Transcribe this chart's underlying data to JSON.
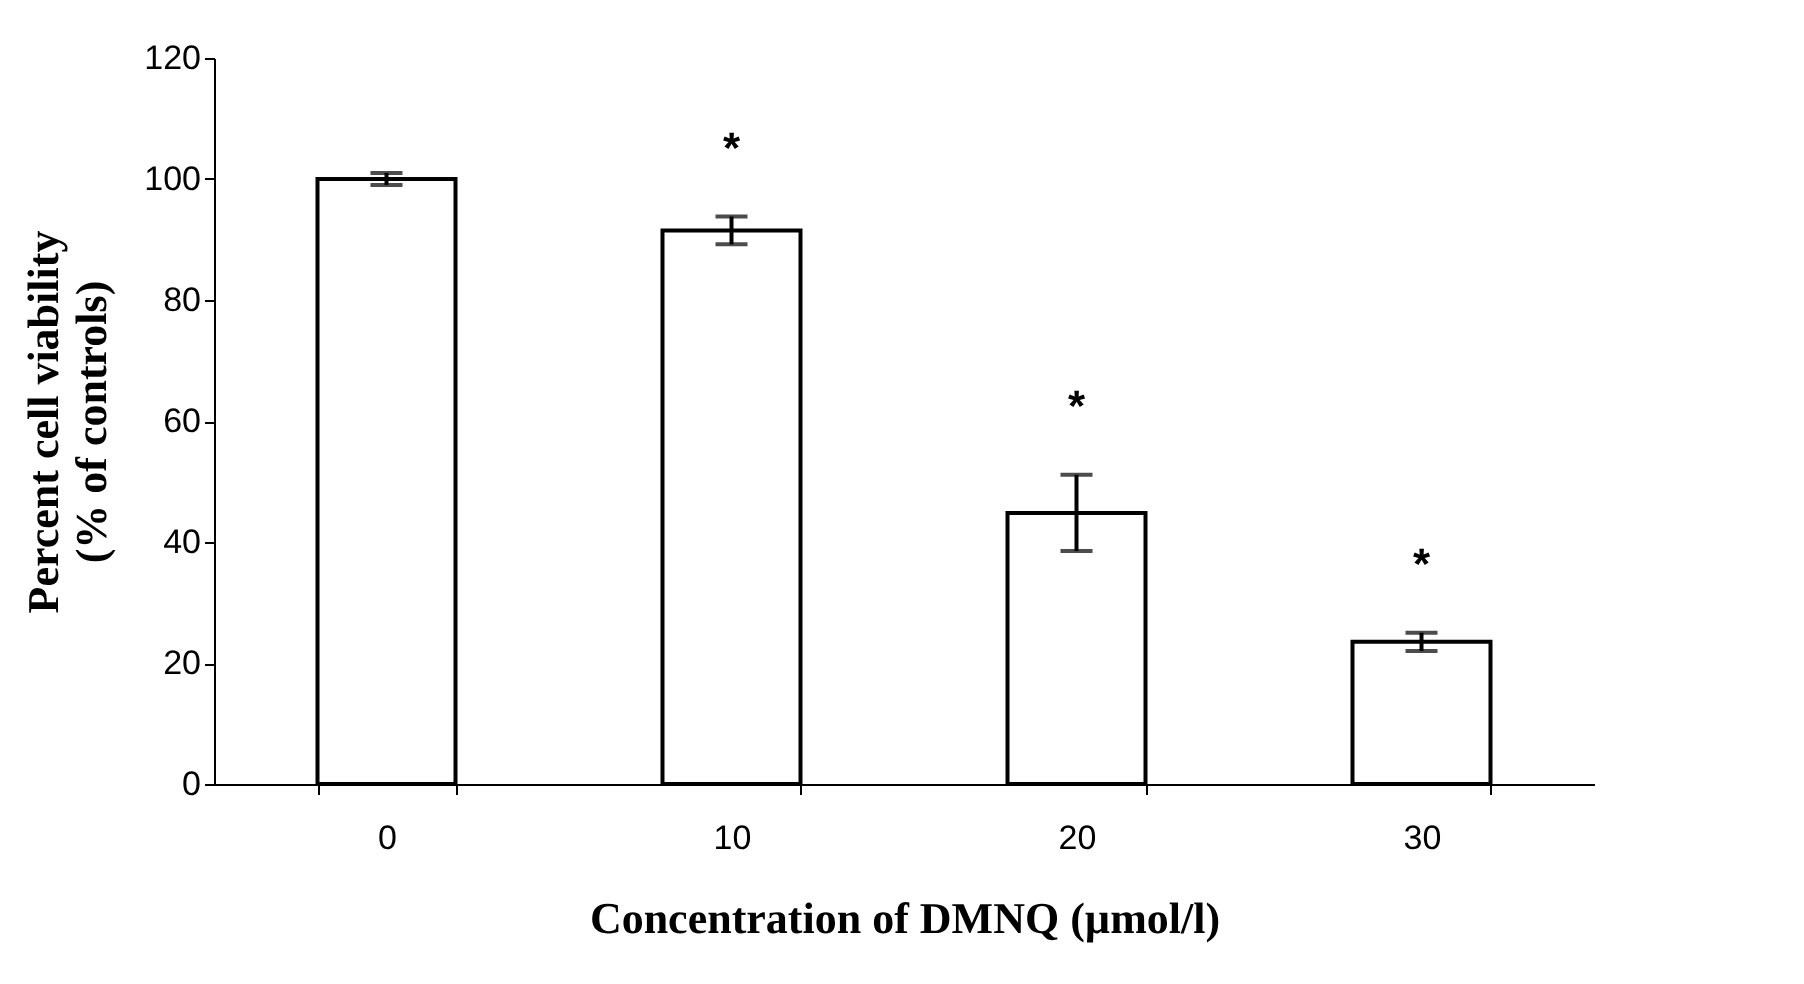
{
  "chart_data": {
    "type": "bar",
    "xlabel": "Concentration of DMNQ (µmol/l)",
    "ylabel": "Percent cell viability\n(% of controls)",
    "categories": [
      "0",
      "10",
      "20",
      "30"
    ],
    "values": [
      100,
      91.5,
      44.8,
      23.5
    ],
    "errors": [
      1,
      2.3,
      6.3,
      1.5
    ],
    "color": "#ffffff",
    "ylim": [
      0,
      120
    ],
    "yticks": [
      0,
      20,
      40,
      60,
      80,
      100,
      120
    ],
    "grid": false,
    "value_labels": [
      null,
      "*",
      "*",
      "*"
    ]
  }
}
